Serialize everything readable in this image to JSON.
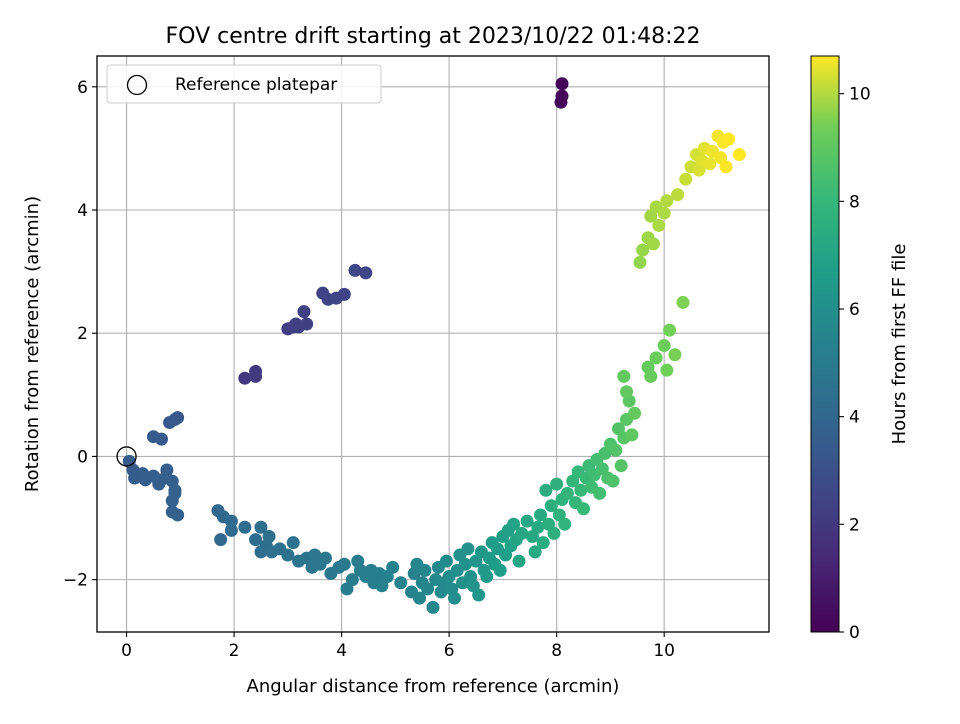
{
  "chart_data": {
    "type": "scatter",
    "title": "FOV centre drift starting at 2023/10/22 01:48:22",
    "xlabel": "Angular distance from reference (arcmin)",
    "ylabel": "Rotation from reference (arcmin)",
    "xlim": [
      -0.55,
      11.95
    ],
    "ylim": [
      -2.85,
      6.5
    ],
    "xticks": [
      0,
      2,
      4,
      6,
      8,
      10
    ],
    "xtick_labels": [
      "0",
      "2",
      "4",
      "6",
      "8",
      "10"
    ],
    "yticks": [
      -2,
      0,
      2,
      4,
      6
    ],
    "ytick_labels": [
      "−2",
      "0",
      "2",
      "4",
      "6"
    ],
    "grid": true,
    "legend": {
      "position": "top-left",
      "entries": [
        "Reference platepar"
      ]
    },
    "reference_point": {
      "x": 0,
      "y": 0
    },
    "colorbar": {
      "label": "Hours from first FF file",
      "colormap": "viridis",
      "range": [
        0,
        10.7
      ],
      "ticks": [
        0,
        2,
        4,
        6,
        8,
        10
      ],
      "tick_labels": [
        "0",
        "2",
        "4",
        "6",
        "8",
        "10"
      ]
    },
    "points": [
      {
        "x": 8.1,
        "y": 6.05,
        "t": 0.1
      },
      {
        "x": 8.1,
        "y": 5.85,
        "t": 0.15
      },
      {
        "x": 8.08,
        "y": 5.75,
        "t": 0.2
      },
      {
        "x": 2.2,
        "y": 1.27,
        "t": 2.0
      },
      {
        "x": 2.4,
        "y": 1.38,
        "t": 2.0
      },
      {
        "x": 2.4,
        "y": 1.3,
        "t": 2.05
      },
      {
        "x": 3.0,
        "y": 2.07,
        "t": 2.2
      },
      {
        "x": 3.1,
        "y": 2.1,
        "t": 2.2
      },
      {
        "x": 3.2,
        "y": 2.1,
        "t": 2.25
      },
      {
        "x": 3.15,
        "y": 2.15,
        "t": 2.25
      },
      {
        "x": 3.3,
        "y": 2.35,
        "t": 2.3
      },
      {
        "x": 3.35,
        "y": 2.15,
        "t": 2.3
      },
      {
        "x": 3.65,
        "y": 2.65,
        "t": 2.4
      },
      {
        "x": 3.75,
        "y": 2.55,
        "t": 2.45
      },
      {
        "x": 3.9,
        "y": 2.57,
        "t": 2.5
      },
      {
        "x": 4.05,
        "y": 2.63,
        "t": 2.5
      },
      {
        "x": 4.25,
        "y": 3.02,
        "t": 2.6
      },
      {
        "x": 4.45,
        "y": 2.98,
        "t": 2.6
      },
      {
        "x": 0.95,
        "y": 0.63,
        "t": 3.3
      },
      {
        "x": 0.9,
        "y": 0.6,
        "t": 3.3
      },
      {
        "x": 0.8,
        "y": 0.55,
        "t": 3.35
      },
      {
        "x": 0.5,
        "y": 0.32,
        "t": 3.4
      },
      {
        "x": 0.65,
        "y": 0.28,
        "t": 3.4
      },
      {
        "x": 0.05,
        "y": -0.08,
        "t": 3.5
      },
      {
        "x": 0.12,
        "y": -0.22,
        "t": 3.5
      },
      {
        "x": 0.15,
        "y": -0.35,
        "t": 3.55
      },
      {
        "x": 0.3,
        "y": -0.28,
        "t": 3.55
      },
      {
        "x": 0.35,
        "y": -0.38,
        "t": 3.6
      },
      {
        "x": 0.5,
        "y": -0.32,
        "t": 3.6
      },
      {
        "x": 0.6,
        "y": -0.45,
        "t": 3.6
      },
      {
        "x": 0.65,
        "y": -0.38,
        "t": 3.65
      },
      {
        "x": 0.75,
        "y": -0.22,
        "t": 3.65
      },
      {
        "x": 0.85,
        "y": -0.4,
        "t": 3.65
      },
      {
        "x": 0.9,
        "y": -0.6,
        "t": 3.7
      },
      {
        "x": 0.85,
        "y": -0.72,
        "t": 3.7
      },
      {
        "x": 0.85,
        "y": -0.9,
        "t": 3.7
      },
      {
        "x": 0.95,
        "y": -0.95,
        "t": 3.75
      },
      {
        "x": 0.9,
        "y": -0.55,
        "t": 3.75
      },
      {
        "x": 1.7,
        "y": -0.88,
        "t": 4.0
      },
      {
        "x": 1.75,
        "y": -1.35,
        "t": 4.0
      },
      {
        "x": 1.8,
        "y": -0.98,
        "t": 4.05
      },
      {
        "x": 1.95,
        "y": -1.05,
        "t": 4.1
      },
      {
        "x": 1.95,
        "y": -1.2,
        "t": 4.1
      },
      {
        "x": 2.2,
        "y": -1.15,
        "t": 4.2
      },
      {
        "x": 2.4,
        "y": -1.35,
        "t": 4.25
      },
      {
        "x": 2.5,
        "y": -1.15,
        "t": 4.3
      },
      {
        "x": 2.5,
        "y": -1.55,
        "t": 4.3
      },
      {
        "x": 2.6,
        "y": -1.45,
        "t": 4.35
      },
      {
        "x": 2.65,
        "y": -1.3,
        "t": 4.35
      },
      {
        "x": 2.7,
        "y": -1.55,
        "t": 4.4
      },
      {
        "x": 2.85,
        "y": -1.5,
        "t": 4.45
      },
      {
        "x": 3.0,
        "y": -1.6,
        "t": 4.5
      },
      {
        "x": 3.1,
        "y": -1.4,
        "t": 4.55
      },
      {
        "x": 3.2,
        "y": -1.7,
        "t": 4.6
      },
      {
        "x": 3.35,
        "y": -1.65,
        "t": 4.65
      },
      {
        "x": 3.45,
        "y": -1.8,
        "t": 4.7
      },
      {
        "x": 3.5,
        "y": -1.6,
        "t": 4.7
      },
      {
        "x": 3.6,
        "y": -1.75,
        "t": 4.75
      },
      {
        "x": 3.7,
        "y": -1.65,
        "t": 4.8
      },
      {
        "x": 3.8,
        "y": -1.9,
        "t": 4.85
      },
      {
        "x": 3.95,
        "y": -1.8,
        "t": 4.9
      },
      {
        "x": 4.05,
        "y": -1.75,
        "t": 4.95
      },
      {
        "x": 4.1,
        "y": -2.15,
        "t": 5.0
      },
      {
        "x": 4.2,
        "y": -2.0,
        "t": 5.0
      },
      {
        "x": 4.3,
        "y": -1.7,
        "t": 5.05
      },
      {
        "x": 4.35,
        "y": -1.85,
        "t": 5.1
      },
      {
        "x": 4.45,
        "y": -1.95,
        "t": 5.1
      },
      {
        "x": 4.55,
        "y": -1.85,
        "t": 5.15
      },
      {
        "x": 4.6,
        "y": -2.05,
        "t": 5.2
      },
      {
        "x": 4.7,
        "y": -1.9,
        "t": 5.2
      },
      {
        "x": 4.75,
        "y": -2.1,
        "t": 5.25
      },
      {
        "x": 4.85,
        "y": -1.95,
        "t": 5.3
      },
      {
        "x": 4.95,
        "y": -1.8,
        "t": 5.3
      },
      {
        "x": 5.1,
        "y": -2.05,
        "t": 5.35
      },
      {
        "x": 5.3,
        "y": -2.2,
        "t": 5.4
      },
      {
        "x": 5.35,
        "y": -1.9,
        "t": 5.4
      },
      {
        "x": 5.4,
        "y": -1.75,
        "t": 5.45
      },
      {
        "x": 5.45,
        "y": -2.3,
        "t": 5.5
      },
      {
        "x": 5.5,
        "y": -2.05,
        "t": 5.5
      },
      {
        "x": 5.55,
        "y": -1.85,
        "t": 5.55
      },
      {
        "x": 5.6,
        "y": -2.15,
        "t": 5.6
      },
      {
        "x": 5.7,
        "y": -2.45,
        "t": 5.65
      },
      {
        "x": 5.75,
        "y": -2.0,
        "t": 5.65
      },
      {
        "x": 5.8,
        "y": -1.8,
        "t": 5.7
      },
      {
        "x": 5.85,
        "y": -2.2,
        "t": 5.75
      },
      {
        "x": 5.9,
        "y": -2.05,
        "t": 5.75
      },
      {
        "x": 5.95,
        "y": -1.7,
        "t": 5.8
      },
      {
        "x": 6.0,
        "y": -1.95,
        "t": 5.85
      },
      {
        "x": 6.05,
        "y": -2.15,
        "t": 5.85
      },
      {
        "x": 6.1,
        "y": -2.3,
        "t": 5.9
      },
      {
        "x": 6.15,
        "y": -1.85,
        "t": 5.95
      },
      {
        "x": 6.2,
        "y": -1.6,
        "t": 6.0
      },
      {
        "x": 6.25,
        "y": -2.05,
        "t": 6.0
      },
      {
        "x": 6.3,
        "y": -1.75,
        "t": 6.05
      },
      {
        "x": 6.35,
        "y": -1.5,
        "t": 6.1
      },
      {
        "x": 6.4,
        "y": -1.95,
        "t": 6.15
      },
      {
        "x": 6.45,
        "y": -2.1,
        "t": 6.2
      },
      {
        "x": 6.5,
        "y": -1.7,
        "t": 6.25
      },
      {
        "x": 6.55,
        "y": -2.25,
        "t": 6.3
      },
      {
        "x": 6.6,
        "y": -1.55,
        "t": 6.35
      },
      {
        "x": 6.65,
        "y": -1.85,
        "t": 6.4
      },
      {
        "x": 6.7,
        "y": -1.95,
        "t": 6.45
      },
      {
        "x": 6.75,
        "y": -1.65,
        "t": 6.5
      },
      {
        "x": 6.8,
        "y": -1.4,
        "t": 6.55
      },
      {
        "x": 6.85,
        "y": -1.75,
        "t": 6.6
      },
      {
        "x": 6.9,
        "y": -1.5,
        "t": 6.65
      },
      {
        "x": 6.95,
        "y": -1.85,
        "t": 6.7
      },
      {
        "x": 7.0,
        "y": -1.3,
        "t": 6.75
      },
      {
        "x": 7.05,
        "y": -1.6,
        "t": 6.8
      },
      {
        "x": 7.1,
        "y": -1.2,
        "t": 6.85
      },
      {
        "x": 7.15,
        "y": -1.45,
        "t": 6.9
      },
      {
        "x": 7.2,
        "y": -1.1,
        "t": 6.95
      },
      {
        "x": 7.25,
        "y": -1.35,
        "t": 7.0
      },
      {
        "x": 7.3,
        "y": -1.7,
        "t": 7.05
      },
      {
        "x": 7.35,
        "y": -1.25,
        "t": 7.1
      },
      {
        "x": 7.45,
        "y": -1.05,
        "t": 7.15
      },
      {
        "x": 7.55,
        "y": -1.3,
        "t": 7.2
      },
      {
        "x": 7.6,
        "y": -1.55,
        "t": 7.25
      },
      {
        "x": 7.65,
        "y": -1.15,
        "t": 7.3
      },
      {
        "x": 7.7,
        "y": -0.95,
        "t": 7.35
      },
      {
        "x": 7.75,
        "y": -1.4,
        "t": 7.4
      },
      {
        "x": 7.8,
        "y": -0.55,
        "t": 7.45
      },
      {
        "x": 7.85,
        "y": -1.1,
        "t": 7.5
      },
      {
        "x": 7.9,
        "y": -0.8,
        "t": 7.55
      },
      {
        "x": 7.95,
        "y": -1.25,
        "t": 7.6
      },
      {
        "x": 8.0,
        "y": -0.45,
        "t": 7.65
      },
      {
        "x": 8.05,
        "y": -0.95,
        "t": 7.7
      },
      {
        "x": 8.1,
        "y": -0.7,
        "t": 7.75
      },
      {
        "x": 8.15,
        "y": -1.1,
        "t": 7.8
      },
      {
        "x": 8.2,
        "y": -0.6,
        "t": 7.85
      },
      {
        "x": 8.3,
        "y": -0.4,
        "t": 7.9
      },
      {
        "x": 8.35,
        "y": -0.75,
        "t": 7.95
      },
      {
        "x": 8.4,
        "y": -0.25,
        "t": 8.0
      },
      {
        "x": 8.45,
        "y": -0.55,
        "t": 8.05
      },
      {
        "x": 8.5,
        "y": -0.85,
        "t": 8.1
      },
      {
        "x": 8.55,
        "y": -0.35,
        "t": 8.15
      },
      {
        "x": 8.6,
        "y": -0.15,
        "t": 8.2
      },
      {
        "x": 8.65,
        "y": -0.5,
        "t": 8.25
      },
      {
        "x": 8.7,
        "y": -0.3,
        "t": 8.3
      },
      {
        "x": 8.75,
        "y": -0.05,
        "t": 8.35
      },
      {
        "x": 8.8,
        "y": -0.6,
        "t": 8.4
      },
      {
        "x": 8.85,
        "y": -0.2,
        "t": 8.45
      },
      {
        "x": 8.9,
        "y": 0.05,
        "t": 8.5
      },
      {
        "x": 8.95,
        "y": -0.35,
        "t": 8.55
      },
      {
        "x": 9.0,
        "y": 0.2,
        "t": 8.6
      },
      {
        "x": 9.05,
        "y": -0.4,
        "t": 8.65
      },
      {
        "x": 9.1,
        "y": 0.1,
        "t": 8.7
      },
      {
        "x": 9.15,
        "y": 0.45,
        "t": 8.75
      },
      {
        "x": 9.2,
        "y": -0.15,
        "t": 8.8
      },
      {
        "x": 9.25,
        "y": 0.3,
        "t": 8.85
      },
      {
        "x": 9.3,
        "y": 0.6,
        "t": 8.9
      },
      {
        "x": 9.35,
        "y": 0.9,
        "t": 8.95
      },
      {
        "x": 9.4,
        "y": 0.35,
        "t": 9.0
      },
      {
        "x": 9.25,
        "y": 1.3,
        "t": 9.1
      },
      {
        "x": 9.3,
        "y": 1.05,
        "t": 9.05
      },
      {
        "x": 9.45,
        "y": 0.7,
        "t": 9.1
      },
      {
        "x": 9.7,
        "y": 1.45,
        "t": 9.15
      },
      {
        "x": 9.75,
        "y": 1.3,
        "t": 9.2
      },
      {
        "x": 9.85,
        "y": 1.6,
        "t": 9.25
      },
      {
        "x": 10.0,
        "y": 1.8,
        "t": 9.3
      },
      {
        "x": 10.05,
        "y": 1.4,
        "t": 9.35
      },
      {
        "x": 10.1,
        "y": 2.05,
        "t": 9.4
      },
      {
        "x": 10.2,
        "y": 1.65,
        "t": 9.45
      },
      {
        "x": 10.35,
        "y": 2.5,
        "t": 9.5
      },
      {
        "x": 9.55,
        "y": 3.15,
        "t": 9.7
      },
      {
        "x": 9.6,
        "y": 3.35,
        "t": 9.75
      },
      {
        "x": 9.7,
        "y": 3.55,
        "t": 9.8
      },
      {
        "x": 9.75,
        "y": 3.9,
        "t": 9.85
      },
      {
        "x": 9.8,
        "y": 3.45,
        "t": 9.85
      },
      {
        "x": 9.85,
        "y": 4.05,
        "t": 9.9
      },
      {
        "x": 9.9,
        "y": 3.75,
        "t": 9.95
      },
      {
        "x": 10.0,
        "y": 3.95,
        "t": 9.95
      },
      {
        "x": 10.05,
        "y": 4.15,
        "t": 10.0
      },
      {
        "x": 10.25,
        "y": 4.25,
        "t": 10.1
      },
      {
        "x": 10.4,
        "y": 4.5,
        "t": 10.2
      },
      {
        "x": 10.5,
        "y": 4.7,
        "t": 10.25
      },
      {
        "x": 10.6,
        "y": 4.9,
        "t": 10.3
      },
      {
        "x": 10.65,
        "y": 4.65,
        "t": 10.35
      },
      {
        "x": 10.7,
        "y": 4.8,
        "t": 10.4
      },
      {
        "x": 10.75,
        "y": 5.0,
        "t": 10.45
      },
      {
        "x": 10.85,
        "y": 4.75,
        "t": 10.5
      },
      {
        "x": 10.9,
        "y": 4.95,
        "t": 10.55
      },
      {
        "x": 11.0,
        "y": 5.2,
        "t": 10.6
      },
      {
        "x": 11.05,
        "y": 4.85,
        "t": 10.6
      },
      {
        "x": 11.1,
        "y": 5.1,
        "t": 10.65
      },
      {
        "x": 11.15,
        "y": 4.7,
        "t": 10.65
      },
      {
        "x": 11.2,
        "y": 5.15,
        "t": 10.7
      },
      {
        "x": 11.4,
        "y": 4.9,
        "t": 10.7
      }
    ]
  }
}
